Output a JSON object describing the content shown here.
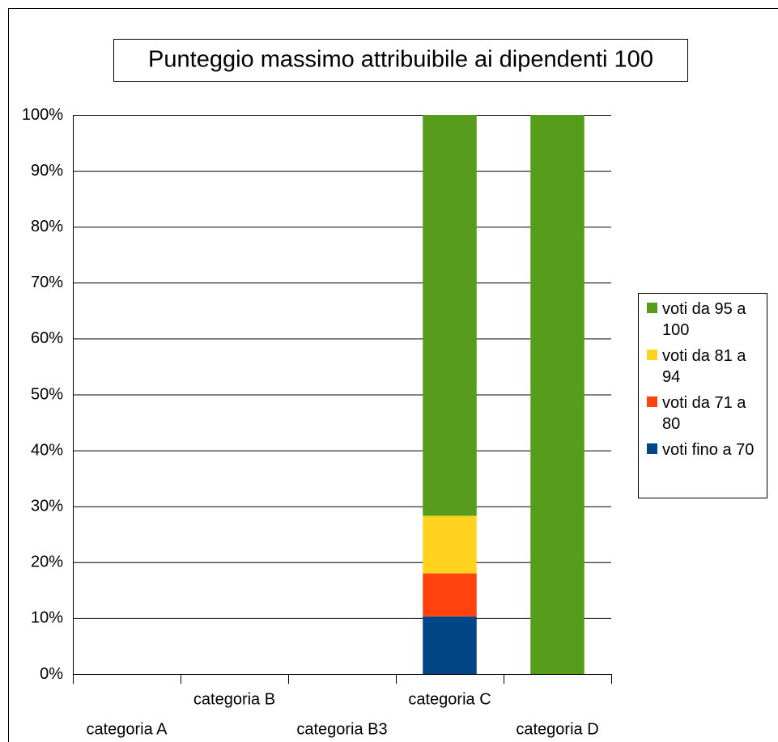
{
  "chart_data": {
    "type": "stacked_bar",
    "title": "Punteggio massimo attribuibile ai dipendenti 100",
    "categories": [
      "categoria A",
      "categoria B",
      "categoria B3",
      "categoria C",
      "categoria D"
    ],
    "series": [
      {
        "name": "voti fino a 70",
        "color": "#004586",
        "values": [
          0,
          0,
          0,
          10.3,
          0
        ]
      },
      {
        "name": "voti da 71 a 80",
        "color": "#ff420e",
        "values": [
          0,
          0,
          0,
          7.7,
          0
        ]
      },
      {
        "name": "voti da 81 a 94",
        "color": "#ffd320",
        "values": [
          0,
          0,
          0,
          10.3,
          0
        ]
      },
      {
        "name": "voti da 95 a 100",
        "color": "#579d1c",
        "values": [
          0,
          0,
          0,
          71.7,
          100
        ]
      }
    ],
    "ylim": [
      0,
      100
    ],
    "yticks": [
      {
        "value": 0,
        "label": "0%"
      },
      {
        "value": 10,
        "label": "10%"
      },
      {
        "value": 20,
        "label": "20%"
      },
      {
        "value": 30,
        "label": "30%"
      },
      {
        "value": 40,
        "label": "40%"
      },
      {
        "value": 50,
        "label": "50%"
      },
      {
        "value": 60,
        "label": "60%"
      },
      {
        "value": 70,
        "label": "70%"
      },
      {
        "value": 80,
        "label": "80%"
      },
      {
        "value": 90,
        "label": "90%"
      },
      {
        "value": 100,
        "label": "100%"
      }
    ],
    "grid": true,
    "legend": "right"
  }
}
